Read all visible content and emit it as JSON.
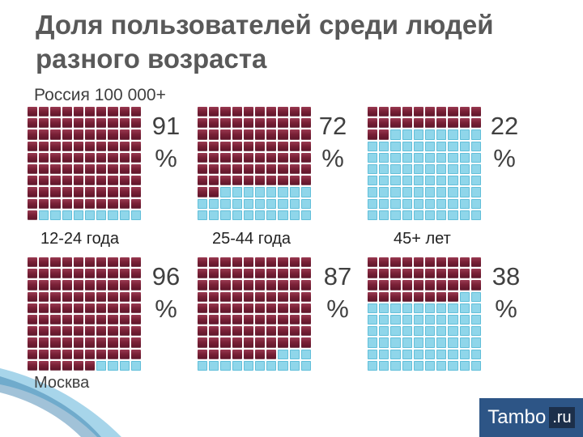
{
  "title": "Доля пользователей среди людей разного возраста",
  "subtitle": "Россия 100 000+",
  "moscow_label": "Москва",
  "logo": {
    "text": "Tambo",
    "badge": ".ru"
  },
  "colors": {
    "filled": "#7a2137",
    "empty": "#8fd6ea",
    "title": "#595959"
  },
  "chart_data": [
    {
      "type": "waffle",
      "region": "Россия 100 000+",
      "category": "12-24 года",
      "value": 91,
      "percent_line1": "91",
      "percent_line2": "%"
    },
    {
      "type": "waffle",
      "region": "Россия 100 000+",
      "category": "25-44 года",
      "value": 72,
      "percent_line1": "72",
      "percent_line2": "%"
    },
    {
      "type": "waffle",
      "region": "Россия 100 000+",
      "category": "45+ лет",
      "value": 22,
      "percent_line1": "22",
      "percent_line2": "%"
    },
    {
      "type": "waffle",
      "region": "Москва",
      "category": "12-24 года",
      "value": 96,
      "percent_line1": "96",
      "percent_line2": "%"
    },
    {
      "type": "waffle",
      "region": "Москва",
      "category": "25-44 года",
      "value": 87,
      "percent_line1": "87",
      "percent_line2": "%"
    },
    {
      "type": "waffle",
      "region": "Москва",
      "category": "45+ лет",
      "value": 38,
      "percent_line1": "38",
      "percent_line2": "%"
    }
  ]
}
